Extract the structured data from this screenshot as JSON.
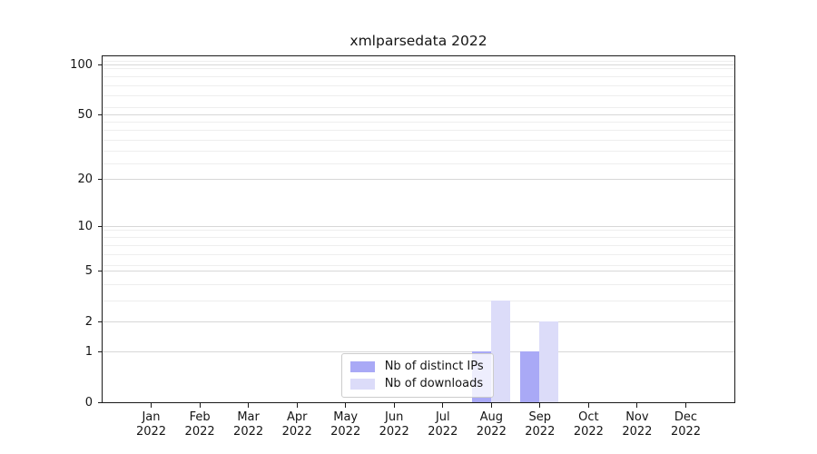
{
  "chart_data": {
    "type": "bar",
    "title": "xmlparsedata 2022",
    "categories": [
      "Jan",
      "Feb",
      "Mar",
      "Apr",
      "May",
      "Jun",
      "Jul",
      "Aug",
      "Sep",
      "Oct",
      "Nov",
      "Dec"
    ],
    "x_year_suffix": "2022",
    "series": [
      {
        "name": "Nb of distinct IPs",
        "color": "#a9a9f6",
        "values": [
          0,
          0,
          0,
          0,
          0,
          0,
          0,
          1,
          1,
          0,
          0,
          0
        ]
      },
      {
        "name": "Nb of downloads",
        "color": "#dcdcf9",
        "values": [
          0,
          0,
          0,
          0,
          0,
          0,
          0,
          3,
          2,
          0,
          0,
          0
        ]
      }
    ],
    "yaxis": {
      "scale": "log1p",
      "ticks": [
        0,
        1,
        2,
        5,
        10,
        20,
        50,
        100
      ],
      "minor_gridlines": [
        3,
        4,
        5.5,
        6.5,
        7.5,
        8.5,
        9.5,
        25,
        30,
        35,
        40,
        45,
        55,
        65,
        75,
        85,
        95,
        105
      ],
      "ylim": [
        0,
        112
      ]
    },
    "legend": {
      "position": "lower center",
      "labels": [
        "Nb of distinct IPs",
        "Nb of downloads"
      ]
    },
    "grid": "on"
  },
  "colors": {
    "background": "#ffffff",
    "spine": "#1a1a1a",
    "grid_major": "#d7d7d7",
    "grid_minor": "#eeeeee",
    "text": "#151515",
    "legend_border": "#cccccc",
    "bar_distinct_ips": "#a9a9f6",
    "bar_downloads": "#dcdcf9"
  }
}
